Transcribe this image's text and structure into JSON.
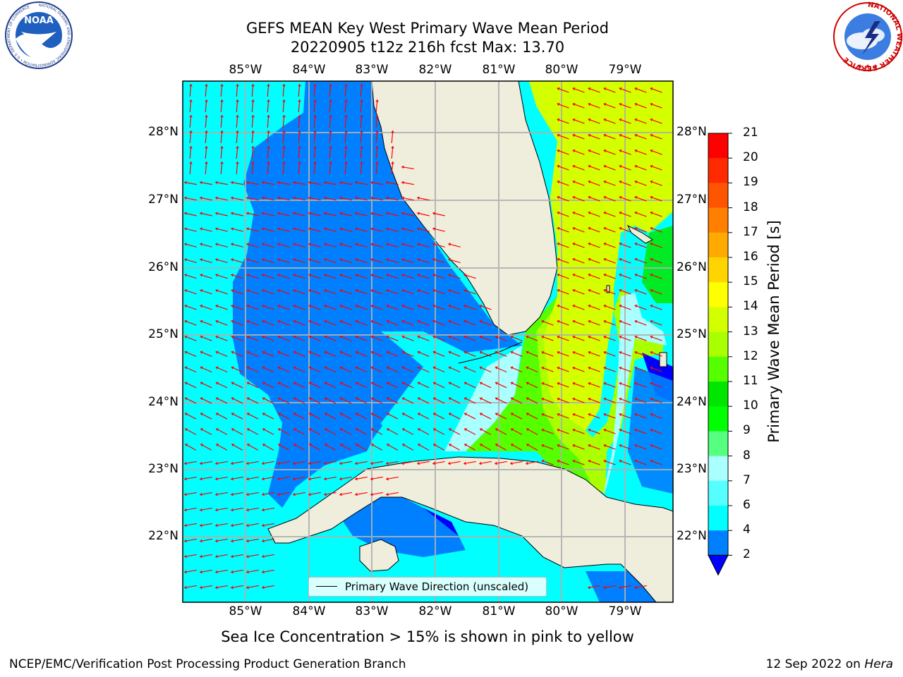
{
  "title": {
    "line1": "GEFS MEAN Key West Primary Wave Mean Period",
    "line2": "20220905 t12z 216h fcst   Max: 13.70"
  },
  "map": {
    "lon_labels": [
      "85°W",
      "84°W",
      "83°W",
      "82°W",
      "81°W",
      "80°W",
      "79°W"
    ],
    "lat_labels": [
      "28°N",
      "27°N",
      "26°N",
      "25°N",
      "24°N",
      "23°N",
      "22°N"
    ],
    "legend_label": "Primary Wave Direction (unscaled)"
  },
  "colorbar": {
    "label": "Primary Wave Mean Period [s]",
    "ticks": [
      "21",
      "20",
      "19",
      "18",
      "17",
      "16",
      "15",
      "14",
      "13",
      "12",
      "11",
      "10",
      "9",
      "8",
      "7",
      "6",
      "4",
      "2"
    ],
    "colors": [
      "#ff0000",
      "#ff2a00",
      "#ff5500",
      "#ff8000",
      "#ffaa00",
      "#ffd400",
      "#ffff00",
      "#d4ff00",
      "#aaff00",
      "#55ff00",
      "#00e600",
      "#00ff00",
      "#55ff80",
      "#aaffff",
      "#55ffff",
      "#00ffff",
      "#0080ff"
    ],
    "extend_color": "#0000ff"
  },
  "ice_note": "Sea Ice Concentration > 15% is shown in pink to yellow",
  "footer": {
    "left": "NCEP/EMC/Verification Post Processing Product Generation Branch",
    "right_prefix": "12 Sep 2022 on ",
    "right_machine": "Hera"
  },
  "logos": {
    "left": "NOAA",
    "left_ring": "NATIONAL OCEANIC AND ATMOSPHERIC ADMINISTRATION • U.S. DEPARTMENT OF COMMERCE",
    "right_ring": "NATIONAL WEATHER SERVICE"
  }
}
